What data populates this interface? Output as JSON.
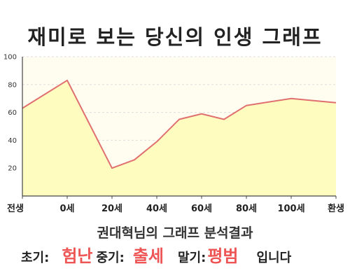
{
  "title": "재미로 보는 당신의 인생 그래프",
  "subtitle": "권대혁님의 그래프 분석결과",
  "results": {
    "early_label": "초기:",
    "early_value": "험난",
    "mid_label": "중기:",
    "mid_value": "출세",
    "late_label": "말기:",
    "late_value": "평범",
    "ending": "입니다"
  },
  "colors": {
    "line": "#e07070",
    "fill": "#fffcc0",
    "plot_bg": "#fffdf0",
    "highlight": "#ee5555",
    "axis": "#444444",
    "grid": "#dddddd"
  },
  "chart_data": {
    "type": "area",
    "title": "재미로 보는 당신의 인생 그래프",
    "xlabel": "",
    "ylabel": "",
    "ylim": [
      0,
      100
    ],
    "yticks": [
      20,
      40,
      60,
      80,
      100
    ],
    "yticklabels": [
      "20",
      "40",
      "60",
      "80",
      "100"
    ],
    "grid": true,
    "legend": "none",
    "categories": [
      "전생",
      "0세",
      "20세",
      "40세",
      "60세",
      "80세",
      "100세",
      "환생"
    ],
    "series": [
      {
        "points": [
          {
            "x": -20,
            "y": 63
          },
          {
            "x": 0,
            "y": 83
          },
          {
            "x": 20,
            "y": 20
          },
          {
            "x": 30,
            "y": 26
          },
          {
            "x": 40,
            "y": 39
          },
          {
            "x": 50,
            "y": 55
          },
          {
            "x": 60,
            "y": 59
          },
          {
            "x": 70,
            "y": 55
          },
          {
            "x": 80,
            "y": 65
          },
          {
            "x": 100,
            "y": 70
          },
          {
            "x": 120,
            "y": 67
          }
        ]
      }
    ]
  }
}
